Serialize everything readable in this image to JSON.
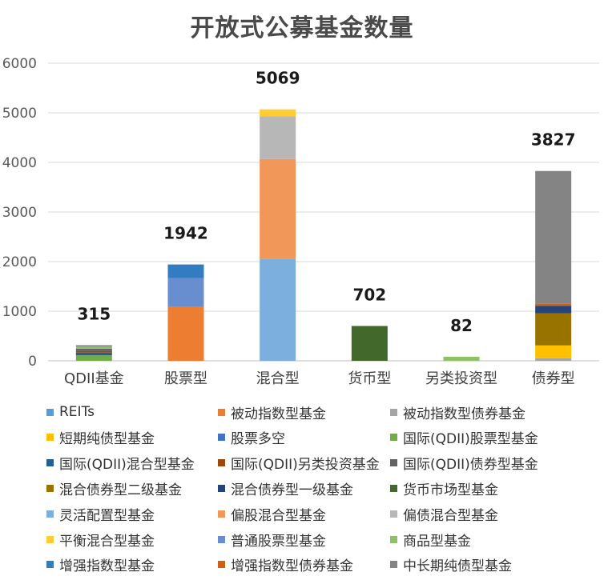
{
  "chart_data": {
    "type": "bar",
    "stacked": true,
    "title": "开放式公募基金数量",
    "xlabel": "",
    "ylabel": "",
    "ylim": [
      0,
      6000
    ],
    "yticks": [
      0,
      1000,
      2000,
      3000,
      4000,
      5000,
      6000
    ],
    "grid": true,
    "legend_position": "bottom",
    "categories": [
      "QDII基金",
      "股票型",
      "混合型",
      "货币型",
      "另类投资型",
      "债券型"
    ],
    "totals": [
      315,
      1942,
      5069,
      702,
      82,
      3827
    ],
    "series": [
      {
        "name": "REITs",
        "color": "#5b9bd5",
        "values": [
          0,
          0,
          0,
          0,
          0,
          0
        ]
      },
      {
        "name": "被动指数型基金",
        "color": "#ed7d31",
        "values": [
          0,
          1090,
          0,
          0,
          0,
          0
        ]
      },
      {
        "name": "被动指数型债券基金",
        "color": "#a5a5a5",
        "values": [
          0,
          0,
          0,
          0,
          0,
          50
        ]
      },
      {
        "name": "短期纯债型基金",
        "color": "#ffc000",
        "values": [
          0,
          0,
          0,
          0,
          0,
          260
        ]
      },
      {
        "name": "股票多空",
        "color": "#4472c4",
        "values": [
          0,
          0,
          0,
          0,
          0,
          0
        ]
      },
      {
        "name": "国际(QDII)股票型基金",
        "color": "#70ad47",
        "values": [
          110,
          0,
          0,
          0,
          0,
          0
        ]
      },
      {
        "name": "国际(QDII)混合型基金",
        "color": "#255e91",
        "values": [
          55,
          0,
          0,
          0,
          0,
          0
        ]
      },
      {
        "name": "国际(QDII)另类投资基金",
        "color": "#9e480e",
        "values": [
          30,
          0,
          0,
          0,
          0,
          0
        ]
      },
      {
        "name": "国际(QDII)债券型基金",
        "color": "#636363",
        "values": [
          50,
          0,
          0,
          0,
          0,
          0
        ]
      },
      {
        "name": "混合债券型二级基金",
        "color": "#997300",
        "values": [
          0,
          0,
          0,
          0,
          0,
          650
        ]
      },
      {
        "name": "混合债券型一级基金",
        "color": "#264478",
        "values": [
          0,
          0,
          0,
          0,
          0,
          150
        ]
      },
      {
        "name": "货币市场型基金",
        "color": "#43682b",
        "values": [
          0,
          0,
          0,
          702,
          0,
          0
        ]
      },
      {
        "name": "灵活配置型基金",
        "color": "#7cafdd",
        "values": [
          0,
          0,
          2060,
          0,
          0,
          0
        ]
      },
      {
        "name": "偏股混合型基金",
        "color": "#f1975a",
        "values": [
          0,
          0,
          2010,
          0,
          0,
          0
        ]
      },
      {
        "name": "偏债混合型基金",
        "color": "#b7b7b7",
        "values": [
          0,
          0,
          860,
          0,
          0,
          0
        ]
      },
      {
        "name": "平衡混合型基金",
        "color": "#ffcd33",
        "values": [
          0,
          0,
          139,
          0,
          0,
          0
        ]
      },
      {
        "name": "普通股票型基金",
        "color": "#698ed0",
        "values": [
          0,
          580,
          0,
          0,
          0,
          0
        ]
      },
      {
        "name": "商品型基金",
        "color": "#8cc168",
        "values": [
          40,
          0,
          0,
          0,
          82,
          0
        ]
      },
      {
        "name": "增强指数型基金",
        "color": "#327dc2",
        "values": [
          0,
          272,
          0,
          0,
          0,
          0
        ]
      },
      {
        "name": "增强指数型债券基金",
        "color": "#d26012",
        "values": [
          0,
          0,
          0,
          0,
          0,
          37
        ]
      },
      {
        "name": "中长期纯债型基金",
        "color": "#848484",
        "values": [
          30,
          0,
          0,
          0,
          0,
          2680
        ]
      }
    ]
  }
}
